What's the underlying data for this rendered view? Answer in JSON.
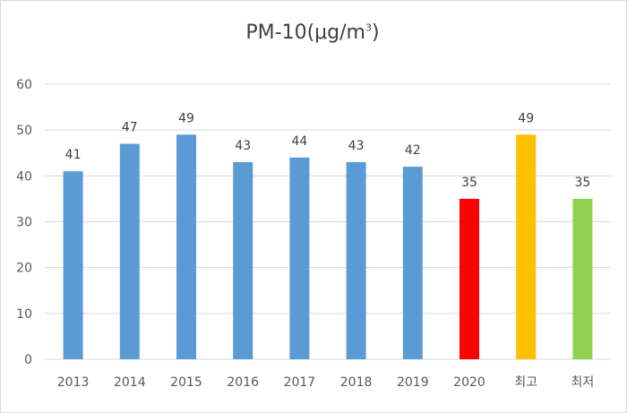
{
  "chart_data": {
    "type": "bar",
    "title": "PM-10(μg/m",
    "title_superscript": "3",
    "title_suffix": ")",
    "categories": [
      "2013",
      "2014",
      "2015",
      "2016",
      "2017",
      "2018",
      "2019",
      "2020",
      "최고",
      "최저"
    ],
    "values": [
      41,
      47,
      49,
      43,
      44,
      43,
      42,
      35,
      49,
      35
    ],
    "colors": [
      "#5b9bd5",
      "#5b9bd5",
      "#5b9bd5",
      "#5b9bd5",
      "#5b9bd5",
      "#5b9bd5",
      "#5b9bd5",
      "#ff0000",
      "#ffc000",
      "#92d050"
    ],
    "ylim": [
      0,
      60
    ],
    "yticks": [
      0,
      10,
      20,
      30,
      40,
      50,
      60
    ],
    "grid": true,
    "legend": "none",
    "xlabel": "",
    "ylabel": ""
  }
}
